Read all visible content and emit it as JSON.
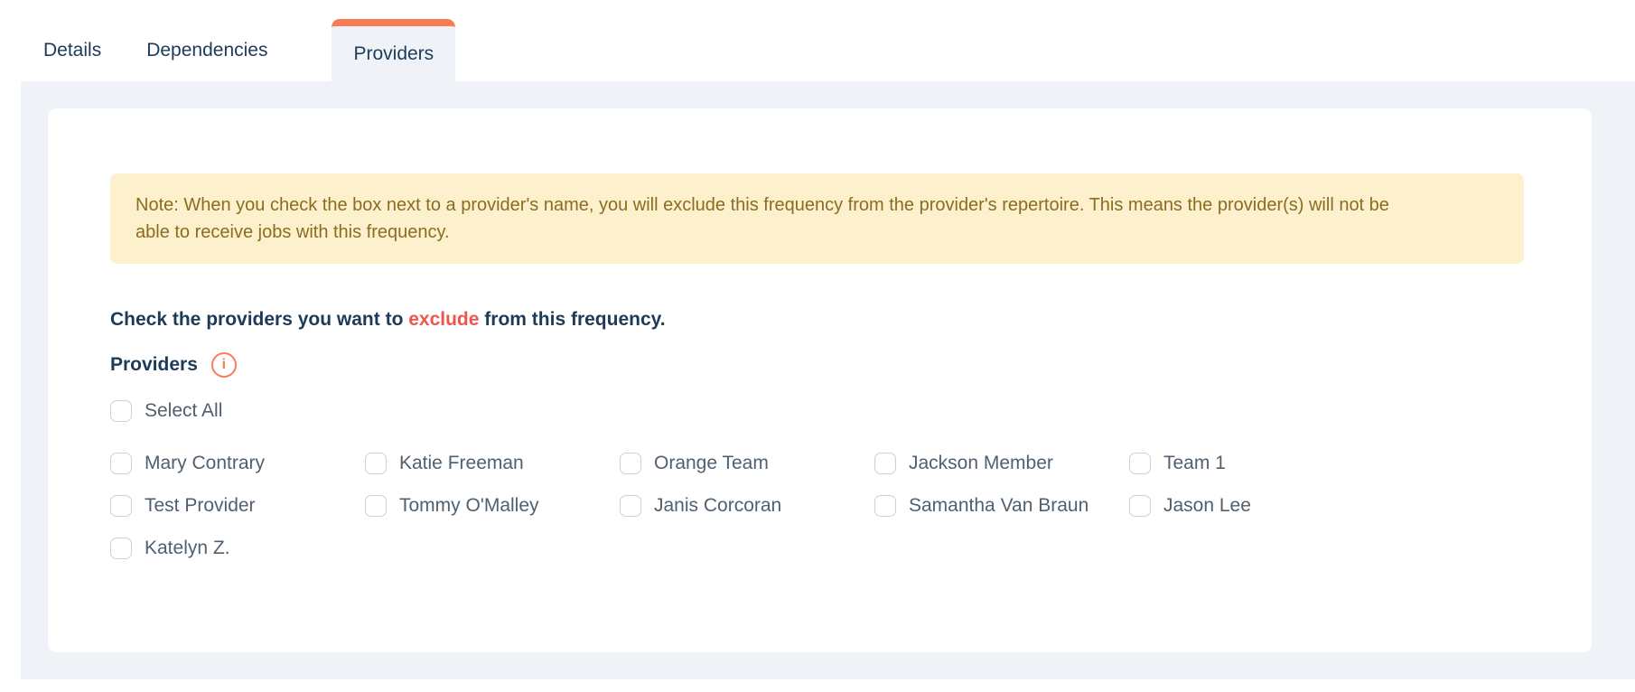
{
  "tabs": {
    "items": [
      {
        "label": "Details",
        "active": false
      },
      {
        "label": "Dependencies",
        "active": false
      },
      {
        "label": "Providers",
        "active": true
      }
    ]
  },
  "note": {
    "text": "Note: When you check the box next to a provider's name, you will exclude this frequency from the provider's repertoire. This means the provider(s) will not be able to receive jobs with this frequency."
  },
  "instruction": {
    "prefix": "Check the providers you want to ",
    "highlight": "exclude",
    "suffix": " from this frequency."
  },
  "providers": {
    "heading": "Providers",
    "info_icon": "i",
    "select_all_label": "Select All",
    "names": [
      "Mary Contrary",
      "Katie Freeman",
      "Orange Team",
      "Jackson Member",
      "Team 1",
      "Test Provider",
      "Tommy O'Malley",
      "Janis Corcoran",
      "Samantha Van Braun",
      "Jason Lee",
      "Katelyn Z."
    ],
    "checked": []
  },
  "colors": {
    "accent_orange": "#f97c56",
    "exclude_red": "#ef544d",
    "note_bg": "#fcf0cd",
    "note_text": "#8a6d1f",
    "panel_bg": "#eff3f8",
    "heading_navy": "#1d3b58",
    "label_slate": "#50606f",
    "checkbox_border": "#c9d1da"
  }
}
